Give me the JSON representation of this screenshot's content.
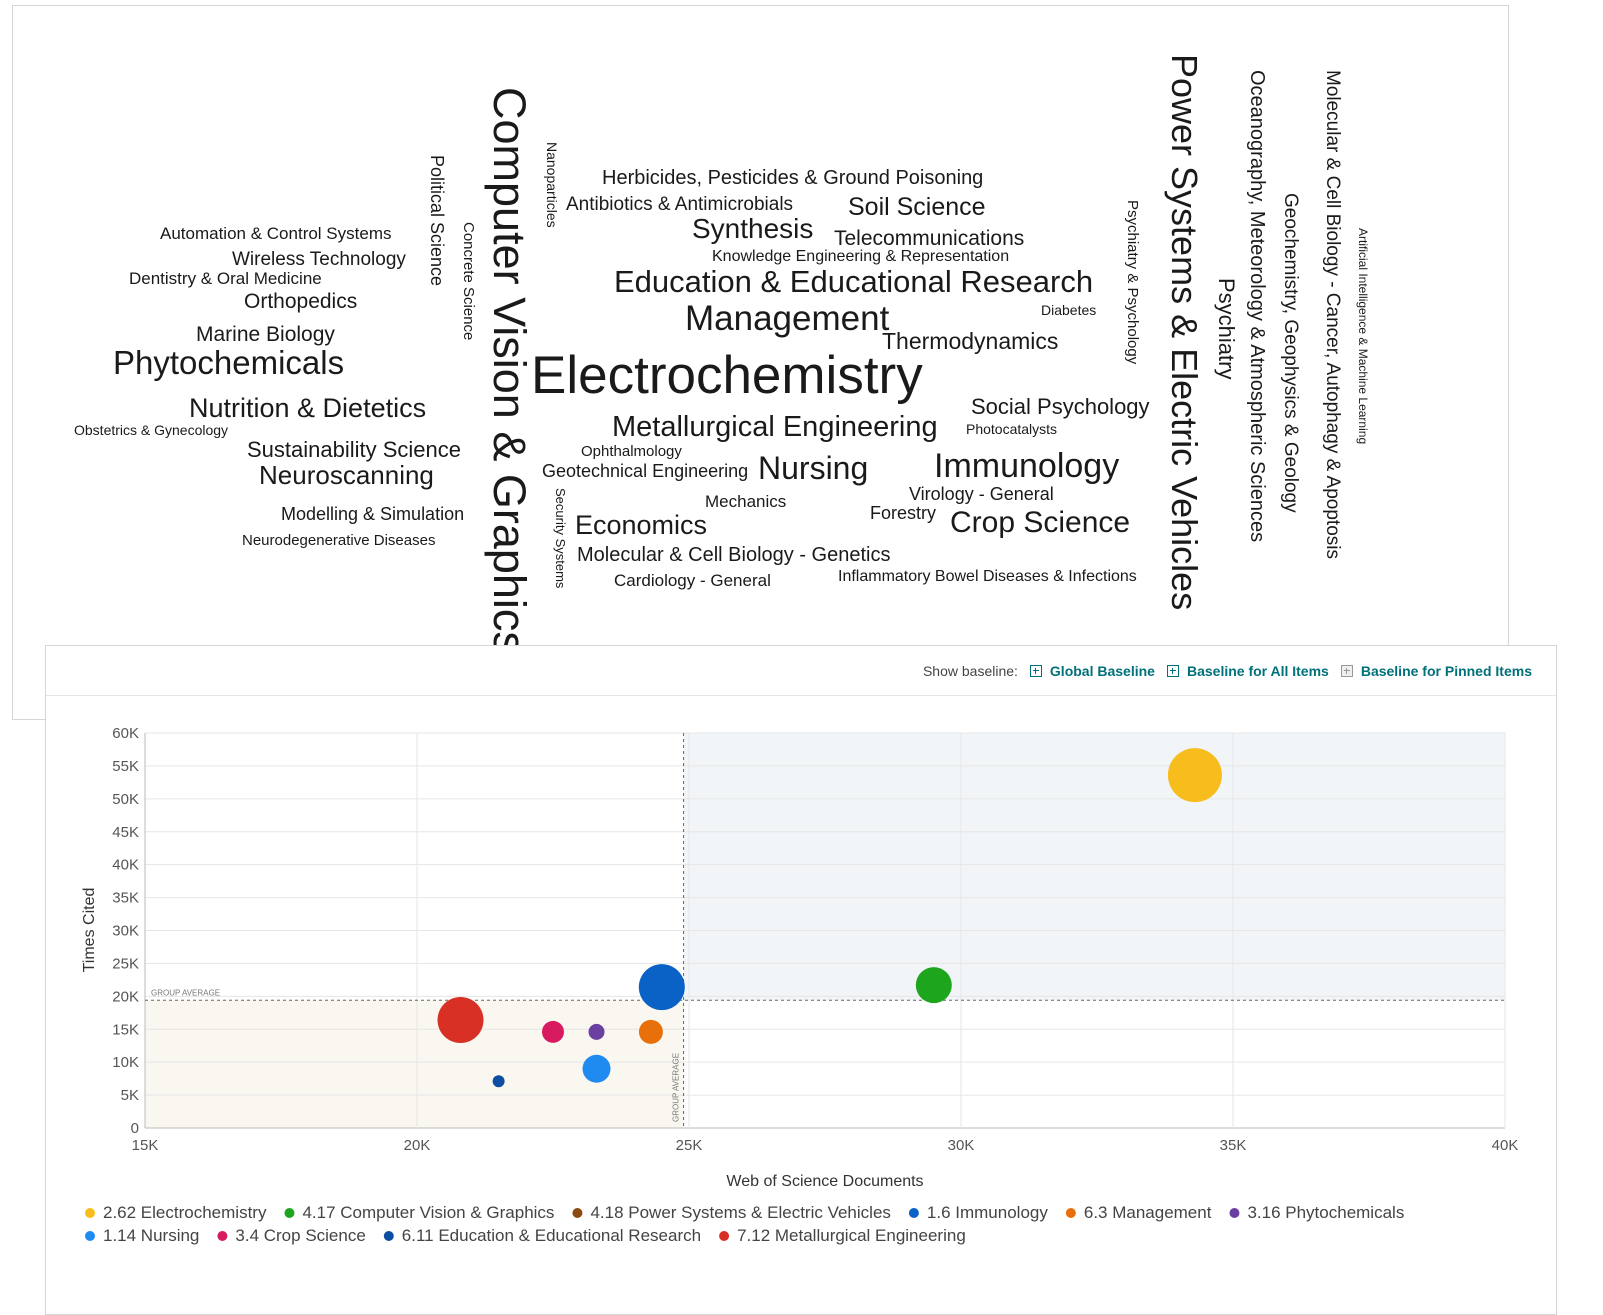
{
  "word_cloud": {
    "words": [
      "Herbicides, Pesticides & Ground Poisoning",
      "Antibiotics & Antimicrobials",
      "Soil Science",
      "Automation & Control Systems",
      "Synthesis",
      "Telecommunications",
      "Knowledge Engineering & Representation",
      "Wireless Technology",
      "Dentistry & Oral Medicine",
      "Education & Educational Research",
      "Orthopedics",
      "Diabetes",
      "Management",
      "Marine Biology",
      "Thermodynamics",
      "Phytochemicals",
      "Electrochemistry",
      "Social Psychology",
      "Nutrition & Dietetics",
      "Metallurgical Engineering",
      "Obstetrics & Gynecology",
      "Photocatalysts",
      "Sustainability Science",
      "Ophthalmology",
      "Immunology",
      "Geotechnical Engineering",
      "Nursing",
      "Neuroscanning",
      "Virology - General",
      "Mechanics",
      "Forestry",
      "Modelling & Simulation",
      "Crop Science",
      "Economics",
      "Neurodegenerative Diseases",
      "Molecular & Cell Biology - Genetics",
      "Inflammatory Bowel Diseases & Infections",
      "Cardiology - General",
      "Political Science",
      "Concrete Science",
      "Computer Vision & Graphics",
      "Nanoparticles",
      "Security Systems",
      "Psychiatry & Psychology",
      "Power Systems & Electric Vehicles",
      "Psychiatry",
      "Oceanography, Meteorology & Atmospheric Sciences",
      "Geochemistry, Geophysics & Geology",
      "Molecular & Cell Biology - Cancer, Autophagy & Apoptosis",
      "Artificial Intelligence & Machine Learning"
    ]
  },
  "baseline": {
    "label": "Show baseline:",
    "options": [
      "Global Baseline",
      "Baseline for All Items",
      "Baseline for Pinned Items"
    ]
  },
  "chart_data": {
    "type": "bubble",
    "x_label": "Web of Science Documents",
    "y_label": "Times Cited",
    "xlim": [
      15000,
      40000
    ],
    "ylim": [
      0,
      60000
    ],
    "xticks": [
      {
        "value": 15000,
        "label": "15K"
      },
      {
        "value": 20000,
        "label": "20K"
      },
      {
        "value": 25000,
        "label": "25K"
      },
      {
        "value": 30000,
        "label": "30K"
      },
      {
        "value": 35000,
        "label": "35K"
      },
      {
        "value": 40000,
        "label": "40K"
      }
    ],
    "yticks": [
      0,
      {
        "value": 5000,
        "label": "5K"
      },
      {
        "value": 10000,
        "label": "10K"
      },
      {
        "value": 15000,
        "label": "15K"
      },
      {
        "value": 20000,
        "label": "20K"
      },
      {
        "value": 25000,
        "label": "25K"
      },
      {
        "value": 30000,
        "label": "30K"
      },
      {
        "value": 35000,
        "label": "35K"
      },
      {
        "value": 40000,
        "label": "40K"
      },
      {
        "value": 45000,
        "label": "45K"
      },
      {
        "value": 50000,
        "label": "50K"
      },
      {
        "value": 55000,
        "label": "55K"
      },
      {
        "value": 60000,
        "label": "60K"
      }
    ],
    "grid": true,
    "reference_lines": {
      "x": 24900,
      "y": 19400,
      "label": "GROUP AVERAGE"
    },
    "series": [
      {
        "name": "2.62 Electrochemistry",
        "color": "#f6bd1c",
        "x": [
          34300
        ],
        "values": [
          53600
        ],
        "sizes": [
          27
        ]
      },
      {
        "name": "4.17 Computer Vision & Graphics",
        "color": "#1ea51e",
        "x": [
          29500
        ],
        "values": [
          21700
        ],
        "sizes": [
          18
        ]
      },
      {
        "name": "4.18 Power Systems & Electric Vehicles",
        "color": "#8a4a12",
        "x": [
          null
        ],
        "values": [
          null
        ],
        "sizes": [
          null
        ]
      },
      {
        "name": "1.6 Immunology",
        "color": "#0b62c6",
        "x": [
          24500
        ],
        "values": [
          21400
        ],
        "sizes": [
          23
        ]
      },
      {
        "name": "6.3 Management",
        "color": "#e8700b",
        "x": [
          24300
        ],
        "values": [
          14600
        ],
        "sizes": [
          12
        ]
      },
      {
        "name": "3.16 Phytochemicals",
        "color": "#6a3fa0",
        "x": [
          23300
        ],
        "values": [
          14600
        ],
        "sizes": [
          8
        ]
      },
      {
        "name": "1.14 Nursing",
        "color": "#1f8bf0",
        "x": [
          23300
        ],
        "values": [
          9000
        ],
        "sizes": [
          14
        ]
      },
      {
        "name": "3.4 Crop Science",
        "color": "#d81b60",
        "x": [
          22500
        ],
        "values": [
          14600
        ],
        "sizes": [
          11
        ]
      },
      {
        "name": "6.11 Education & Educational Research",
        "color": "#0b4ea2",
        "x": [
          21500
        ],
        "values": [
          7100
        ],
        "sizes": [
          6
        ]
      },
      {
        "name": "7.12 Metallurgical Engineering",
        "color": "#d93025",
        "x": [
          20800
        ],
        "values": [
          16400
        ],
        "sizes": [
          23
        ]
      }
    ]
  }
}
